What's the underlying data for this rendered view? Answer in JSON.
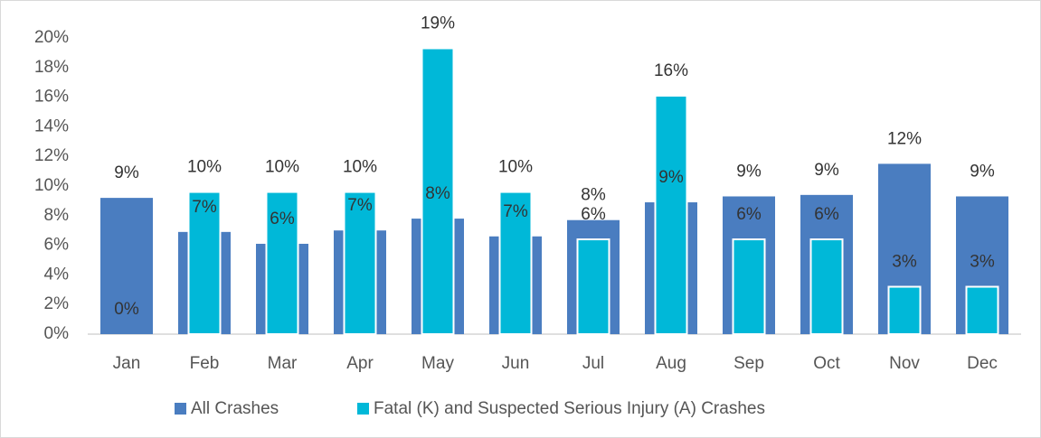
{
  "chart_data": {
    "type": "bar",
    "categories": [
      "Jan",
      "Feb",
      "Mar",
      "Apr",
      "May",
      "Jun",
      "Jul",
      "Aug",
      "Sep",
      "Oct",
      "Nov",
      "Dec"
    ],
    "series": [
      {
        "name": "All Crashes",
        "color": "#4a7dc0",
        "values": [
          9.2,
          6.9,
          6.1,
          7.0,
          7.8,
          6.6,
          7.7,
          8.9,
          9.3,
          9.4,
          11.5,
          9.3
        ],
        "value_labels": [
          "9%",
          "7%",
          "6%",
          "7%",
          "8%",
          "7%",
          "8%",
          "9%",
          "9%",
          "9%",
          "12%",
          "9%"
        ]
      },
      {
        "name": "Fatal (K) and Suspected Serious Injury (A) Crashes",
        "color": "#00b8d8",
        "values": [
          0,
          9.6,
          9.6,
          9.6,
          19.3,
          9.6,
          6.4,
          16.1,
          6.4,
          6.4,
          3.2,
          3.2
        ],
        "value_labels": [
          "0%",
          "10%",
          "10%",
          "10%",
          "19%",
          "10%",
          "6%",
          "16%",
          "6%",
          "6%",
          "3%",
          "3%"
        ]
      }
    ],
    "ylim": [
      0,
      20
    ],
    "yticks": [
      {
        "value": 0,
        "label": "0%"
      },
      {
        "value": 2,
        "label": "2%"
      },
      {
        "value": 4,
        "label": "4%"
      },
      {
        "value": 6,
        "label": "6%"
      },
      {
        "value": 8,
        "label": "8%"
      },
      {
        "value": 10,
        "label": "10%"
      },
      {
        "value": 12,
        "label": "12%"
      },
      {
        "value": 14,
        "label": "14%"
      },
      {
        "value": 16,
        "label": "16%"
      },
      {
        "value": 18,
        "label": "18%"
      },
      {
        "value": 20,
        "label": "20%"
      }
    ],
    "grid": false,
    "legend": "bottom"
  }
}
